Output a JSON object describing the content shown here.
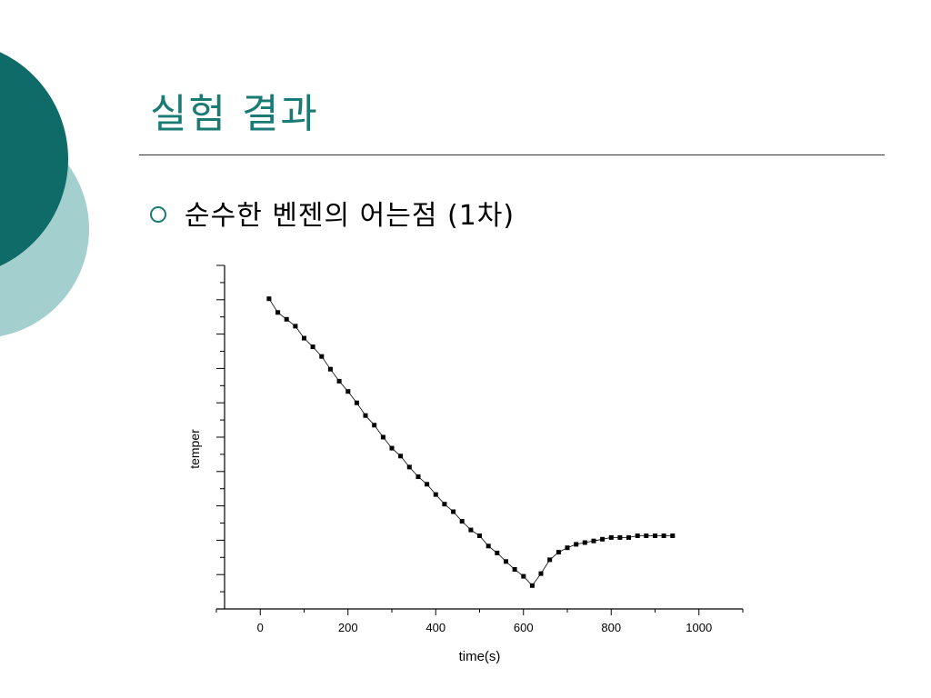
{
  "slide": {
    "title": "실험 결과",
    "bullet": "순수한 벤젠의 어는점 (1차)",
    "accent_color": "#1a7a74",
    "deco_dark_color": "#0f6b67",
    "deco_light_color": "#a3cfcf",
    "bullet_icon": "hollow-circle-icon"
  },
  "chart_data": {
    "type": "line",
    "xlabel": "time(s)",
    "ylabel": "temper",
    "xlim": [
      -100,
      1100
    ],
    "ylim": [
      0,
      100
    ],
    "x_ticks": [
      0,
      200,
      400,
      600,
      800,
      1000
    ],
    "x_tick_labels": [
      "0",
      "200",
      "400",
      "600",
      "800",
      "1000"
    ],
    "y_tick_labels_shown": false,
    "grid": false,
    "marker": "square",
    "series": [
      {
        "name": "",
        "x": [
          20,
          40,
          60,
          80,
          100,
          120,
          140,
          160,
          180,
          200,
          220,
          240,
          260,
          280,
          300,
          320,
          340,
          360,
          380,
          400,
          420,
          440,
          460,
          480,
          500,
          520,
          540,
          560,
          580,
          600,
          620,
          640,
          660,
          680,
          700,
          720,
          740,
          760,
          780,
          800,
          820,
          840,
          860,
          880,
          900,
          920,
          940
        ],
        "y": [
          90.3,
          86.3,
          84.3,
          82.3,
          78.8,
          76.3,
          73.5,
          69.8,
          66.3,
          63.3,
          60.0,
          56.3,
          53.5,
          50.0,
          46.8,
          44.5,
          41.3,
          38.5,
          36.3,
          33.3,
          30.5,
          28.3,
          25.5,
          23.0,
          21.3,
          18.3,
          16.3,
          13.8,
          11.5,
          9.5,
          6.8,
          10.3,
          14.3,
          16.5,
          17.8,
          18.8,
          19.3,
          19.8,
          20.3,
          20.8,
          20.8,
          20.8,
          21.3,
          21.3,
          21.3,
          21.3,
          21.3
        ]
      }
    ]
  }
}
